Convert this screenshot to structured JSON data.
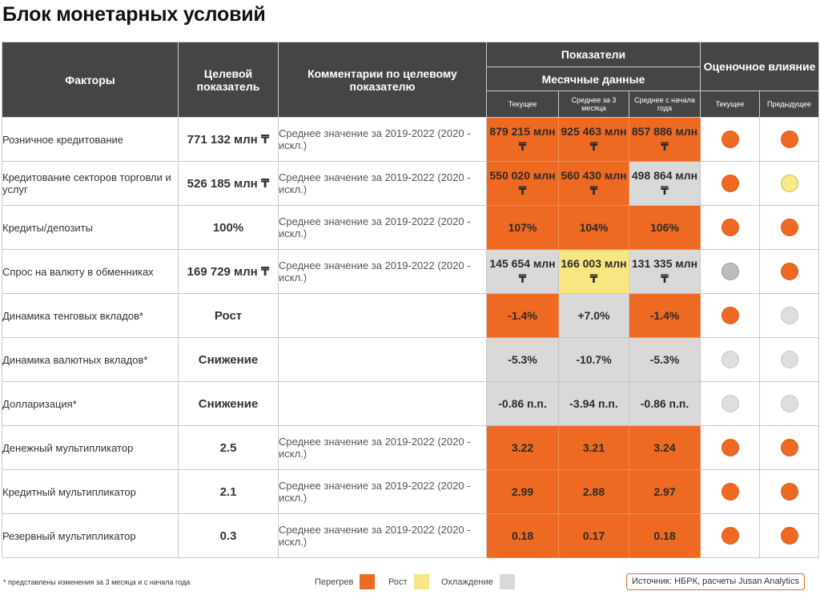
{
  "title": "Блок монетарных условий",
  "header": {
    "factors": "Факторы",
    "target": "Целевой показатель",
    "comments": "Комментарии по целевому показателю",
    "indicators": "Показатели",
    "monthly": "Месячные данные",
    "impact": "Оценочное влияние",
    "sub": {
      "current": "Текущее",
      "avg3m": "Среднее за 3 месяца",
      "avgytd": "Среднее с начала года",
      "impact_current": "Текущее",
      "impact_prev": "Предыдущее"
    }
  },
  "rows": [
    {
      "factor": "Розничное кредитование",
      "target": "771 132 млн ₸",
      "comment": "Среднее значение за 2019-2022 (2020 - искл.)",
      "values": [
        {
          "text": "879 215 млн ₸",
          "color": "orange"
        },
        {
          "text": "925 463 млн ₸",
          "color": "orange"
        },
        {
          "text": "857 886 млн ₸",
          "color": "orange"
        }
      ],
      "impact_current": "orange",
      "impact_prev": "orange"
    },
    {
      "factor": "Кредитование секторов торговли и услуг",
      "target": "526 185 млн ₸",
      "comment": "Среднее значение за 2019-2022 (2020 - искл.)",
      "values": [
        {
          "text": "550 020 млн ₸",
          "color": "orange"
        },
        {
          "text": "560 430 млн ₸",
          "color": "orange"
        },
        {
          "text": "498 864 млн ₸",
          "color": "gray"
        }
      ],
      "impact_current": "orange",
      "impact_prev": "yellow"
    },
    {
      "factor": "Кредиты/депозиты",
      "target": "100%",
      "comment": "Среднее значение за 2019-2022 (2020 - искл.)",
      "values": [
        {
          "text": "107%",
          "color": "orange"
        },
        {
          "text": "104%",
          "color": "orange"
        },
        {
          "text": "106%",
          "color": "orange"
        }
      ],
      "impact_current": "orange",
      "impact_prev": "orange"
    },
    {
      "factor": "Спрос на валюту в обменниках",
      "target": "169 729 млн ₸",
      "comment": "Среднее значение за 2019-2022 (2020 - искл.)",
      "values": [
        {
          "text": "145 654 млн ₸",
          "color": "gray"
        },
        {
          "text": "166 003 млн ₸",
          "color": "yellow"
        },
        {
          "text": "131 335 млн ₸",
          "color": "gray"
        }
      ],
      "impact_current": "darkgray",
      "impact_prev": "orange"
    },
    {
      "factor": "Динамика тенговых вкладов*",
      "target": "Рост",
      "comment": "",
      "values": [
        {
          "text": "-1.4%",
          "color": "orange"
        },
        {
          "text": "+7.0%",
          "color": "gray"
        },
        {
          "text": "-1.4%",
          "color": "orange"
        }
      ],
      "impact_current": "orange",
      "impact_prev": "lightgray"
    },
    {
      "factor": "Динамика валютных вкладов*",
      "target": "Снижение",
      "comment": "",
      "values": [
        {
          "text": "-5.3%",
          "color": "gray"
        },
        {
          "text": "-10.7%",
          "color": "gray"
        },
        {
          "text": "-5.3%",
          "color": "gray"
        }
      ],
      "impact_current": "lightgray",
      "impact_prev": "lightgray"
    },
    {
      "factor": "Долларизация*",
      "target": "Снижение",
      "comment": "",
      "values": [
        {
          "text": "-0.86 п.п.",
          "color": "gray"
        },
        {
          "text": "-3.94 п.п.",
          "color": "gray"
        },
        {
          "text": "-0.86 п.п.",
          "color": "gray"
        }
      ],
      "impact_current": "lightgray",
      "impact_prev": "lightgray"
    },
    {
      "factor": "Денежный мультипликатор",
      "target": "2.5",
      "comment": "Среднее значение за 2019-2022 (2020 - искл.)",
      "values": [
        {
          "text": "3.22",
          "color": "orange"
        },
        {
          "text": "3.21",
          "color": "orange"
        },
        {
          "text": "3.24",
          "color": "orange"
        }
      ],
      "impact_current": "orange",
      "impact_prev": "orange"
    },
    {
      "factor": "Кредитный мультипликатор",
      "target": "2.1",
      "comment": "Среднее значение за 2019-2022 (2020 - искл.)",
      "values": [
        {
          "text": "2.99",
          "color": "orange"
        },
        {
          "text": "2.88",
          "color": "orange"
        },
        {
          "text": "2.97",
          "color": "orange"
        }
      ],
      "impact_current": "orange",
      "impact_prev": "orange"
    },
    {
      "factor": "Резервный мультипликатор",
      "target": "0.3",
      "comment": "Среднее значение за 2019-2022 (2020 - искл.)",
      "values": [
        {
          "text": "0.18",
          "color": "orange"
        },
        {
          "text": "0.17",
          "color": "orange"
        },
        {
          "text": "0.18",
          "color": "orange"
        }
      ],
      "impact_current": "orange",
      "impact_prev": "orange"
    }
  ],
  "footer": {
    "note": "* представлены изменения за 3 месяца и с начала года",
    "legend": [
      {
        "label": "Перегрев",
        "color": "orange"
      },
      {
        "label": "Рост",
        "color": "yellow"
      },
      {
        "label": "Охлаждение",
        "color": "gray"
      }
    ],
    "source": "Источник: НБРК, расчеты Jusan Analytics"
  },
  "colors": {
    "orange": "#ee6a23",
    "yellow": "#f7e682",
    "gray": "#d9d9d9",
    "header": "#454545"
  }
}
